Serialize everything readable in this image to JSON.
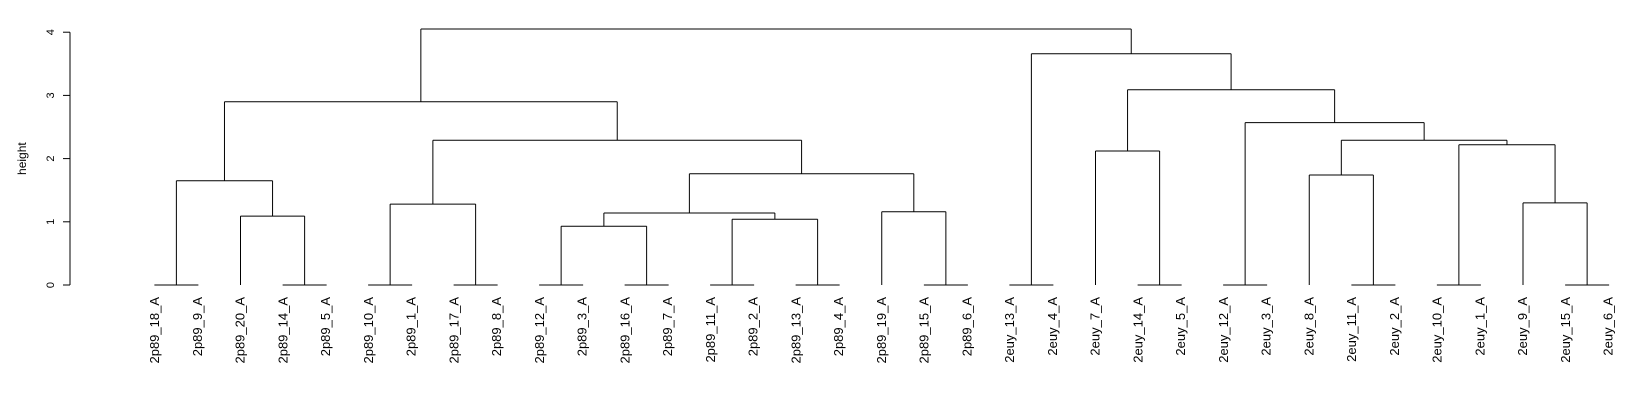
{
  "chart_data": {
    "type": "dendrogram",
    "ylabel": "height",
    "ylim": [
      0,
      4.35
    ],
    "yticks": [
      0,
      1,
      2,
      3,
      4
    ],
    "tick_labels": [
      "0",
      "1",
      "2",
      "3",
      "4"
    ],
    "leaves": [
      "2p89_18_A",
      "2p89_9_A",
      "2p89_20_A",
      "2p89_14_A",
      "2p89_5_A",
      "2p89_10_A",
      "2p89_1_A",
      "2p89_17_A",
      "2p89_8_A",
      "2p89_12_A",
      "2p89_3_A",
      "2p89_16_A",
      "2p89_7_A",
      "2p89_11_A",
      "2p89_2_A",
      "2p89_13_A",
      "2p89_4_A",
      "2p89_19_A",
      "2p89_15_A",
      "2p89_6_A",
      "2euy_13_A",
      "2euy_4_A",
      "2euy_7_A",
      "2euy_14_A",
      "2euy_5_A",
      "2euy_12_A",
      "2euy_3_A",
      "2euy_8_A",
      "2euy_11_A",
      "2euy_2_A",
      "2euy_10_A",
      "2euy_1_A",
      "2euy_9_A",
      "2euy_15_A",
      "2euy_6_A"
    ],
    "merges": [
      {
        "id": "m1",
        "left": 0,
        "right": 1,
        "height": 0.0
      },
      {
        "id": "m2",
        "left": 3,
        "right": 4,
        "height": 0.0
      },
      {
        "id": "m3",
        "left": 5,
        "right": 6,
        "height": 0.0
      },
      {
        "id": "m4",
        "left": 7,
        "right": 8,
        "height": 0.0
      },
      {
        "id": "m5",
        "left": 9,
        "right": 10,
        "height": 0.0
      },
      {
        "id": "m6",
        "left": 11,
        "right": 12,
        "height": 0.0
      },
      {
        "id": "m7",
        "left": 13,
        "right": 14,
        "height": 0.0
      },
      {
        "id": "m8",
        "left": 15,
        "right": 16,
        "height": 0.0
      },
      {
        "id": "m9",
        "left": 18,
        "right": 19,
        "height": 0.0
      },
      {
        "id": "m10",
        "left": 20,
        "right": 21,
        "height": 0.0
      },
      {
        "id": "m11",
        "left": 23,
        "right": 24,
        "height": 0.0
      },
      {
        "id": "m12",
        "left": 25,
        "right": 26,
        "height": 0.0
      },
      {
        "id": "m13",
        "left": 28,
        "right": 29,
        "height": 0.0
      },
      {
        "id": "m14",
        "left": 30,
        "right": 31,
        "height": 0.0
      },
      {
        "id": "m15",
        "left": 33,
        "right": 34,
        "height": 0.0
      },
      {
        "id": "m16",
        "left": 2,
        "right": "m2",
        "height": 1.09
      },
      {
        "id": "m17",
        "left": "m1",
        "right": "m16",
        "height": 1.65
      },
      {
        "id": "m18",
        "left": "m3",
        "right": "m4",
        "height": 1.28
      },
      {
        "id": "m19",
        "left": "m5",
        "right": "m6",
        "height": 0.93
      },
      {
        "id": "m20",
        "left": "m7",
        "right": "m8",
        "height": 1.04
      },
      {
        "id": "m21",
        "left": "m19",
        "right": "m20",
        "height": 1.14
      },
      {
        "id": "m22",
        "left": 17,
        "right": "m9",
        "height": 1.16
      },
      {
        "id": "m23",
        "left": "m21",
        "right": "m22",
        "height": 1.76
      },
      {
        "id": "m24",
        "left": "m18",
        "right": "m23",
        "height": 2.29
      },
      {
        "id": "m25",
        "left": "m17",
        "right": "m24",
        "height": 2.9
      },
      {
        "id": "m26",
        "left": 22,
        "right": "m11",
        "height": 2.12
      },
      {
        "id": "m27",
        "left": 27,
        "right": "m13",
        "height": 1.74
      },
      {
        "id": "m28",
        "left": 32,
        "right": "m15",
        "height": 1.3
      },
      {
        "id": "m29",
        "left": "m14",
        "right": "m28",
        "height": 2.22
      },
      {
        "id": "m30",
        "left": "m27",
        "right": "m29",
        "height": 2.29
      },
      {
        "id": "m31",
        "left": "m12",
        "right": "m30",
        "height": 2.57
      },
      {
        "id": "m32",
        "left": "m26",
        "right": "m31",
        "height": 3.09
      },
      {
        "id": "m33",
        "left": "m10",
        "right": "m32",
        "height": 3.66
      },
      {
        "id": "m34",
        "left": "m25",
        "right": "m33",
        "height": 4.05
      }
    ],
    "grid": false,
    "legend": "none"
  }
}
